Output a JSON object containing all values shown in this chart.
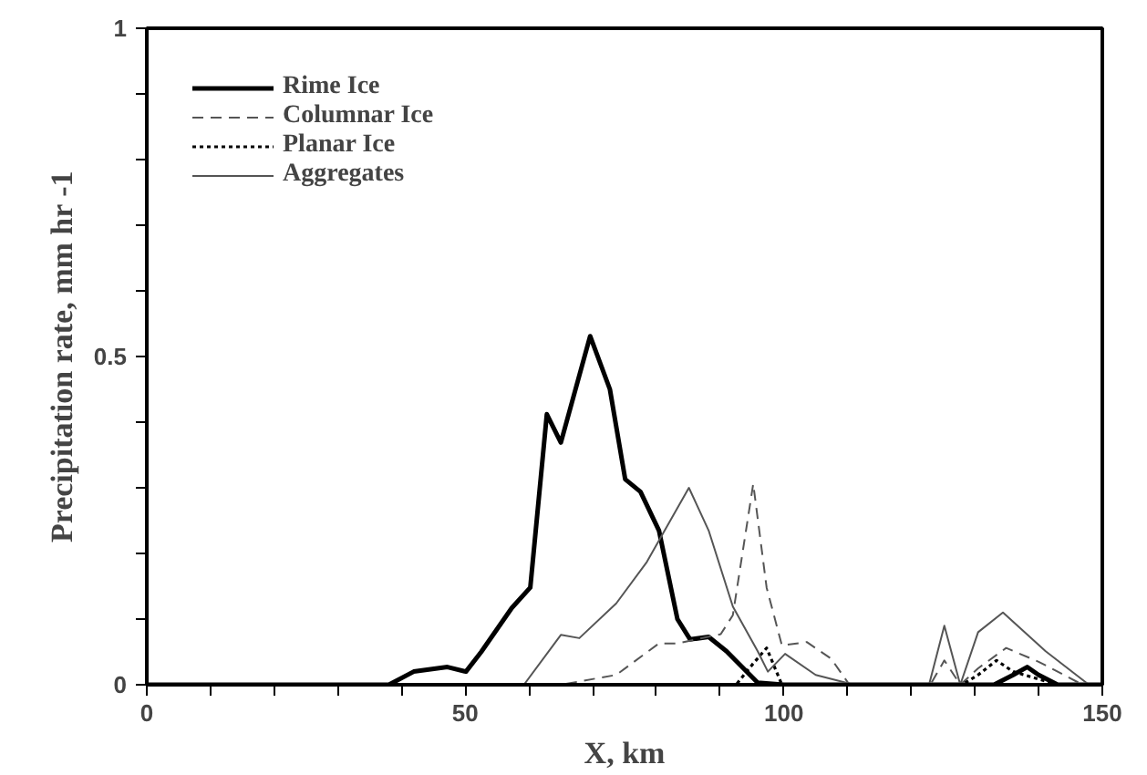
{
  "chart_data": {
    "type": "line",
    "xlabel": "X, km",
    "ylabel": "Precipitation rate, mm hr -1",
    "xlim": [
      0,
      150
    ],
    "ylim": [
      0,
      1
    ],
    "xticks": [
      0,
      {
        "value": 10,
        "label": null
      },
      {
        "value": 20,
        "label": null
      },
      {
        "value": 30,
        "label": null
      },
      {
        "value": 40,
        "label": null
      },
      50,
      {
        "value": 60,
        "label": null
      },
      {
        "value": 70,
        "label": null
      },
      {
        "value": 80,
        "label": null
      },
      {
        "value": 90,
        "label": null
      },
      100,
      {
        "value": 110,
        "label": null
      },
      {
        "value": 120,
        "label": null
      },
      {
        "value": 130,
        "label": null
      },
      {
        "value": 140,
        "label": null
      },
      150
    ],
    "yticks": [
      0,
      {
        "value": 0.1,
        "label": null
      },
      {
        "value": 0.2,
        "label": null
      },
      {
        "value": 0.3,
        "label": null
      },
      {
        "value": 0.4,
        "label": null
      },
      0.5,
      {
        "value": 0.6,
        "label": null
      },
      {
        "value": 0.7,
        "label": null
      },
      {
        "value": 0.8,
        "label": null
      },
      {
        "value": 0.9,
        "label": null
      },
      1
    ],
    "grid": false,
    "legend": "top left",
    "marker": "none",
    "series": [
      {
        "name": "Rime Ice",
        "color": "#000000",
        "line_style": "solid",
        "x": [
          0,
          38,
          41.9,
          47.2,
          50.1,
          52.5,
          57.3,
          60.2,
          62.8,
          65.0,
          69.6,
          72.7,
          75.1,
          77.5,
          80.4,
          83.3,
          85.3,
          88.2,
          91.0,
          95.9,
          100,
          133,
          136,
          138.2,
          140,
          143,
          150
        ],
        "values": [
          0,
          0,
          0.02,
          0.027,
          0.02,
          0.05,
          0.117,
          0.148,
          0.412,
          0.369,
          0.531,
          0.45,
          0.313,
          0.294,
          0.235,
          0.1,
          0.069,
          0.073,
          0.051,
          0.003,
          0,
          0,
          0.015,
          0.027,
          0.015,
          0,
          0
        ]
      },
      {
        "name": "Columnar Ice",
        "color": "#555555",
        "line_style": "dashed",
        "x": [
          0,
          65,
          73.7,
          80.4,
          83.3,
          90.1,
          92.0,
          95.2,
          97.3,
          99.7,
          103.6,
          107.4,
          110.3,
          123,
          125.2,
          127.7,
          130.5,
          134.9,
          140,
          146.9,
          150
        ],
        "values": [
          0,
          0,
          0.015,
          0.063,
          0.063,
          0.077,
          0.106,
          0.306,
          0.148,
          0.06,
          0.065,
          0.04,
          0,
          0,
          0.037,
          0,
          0.025,
          0.056,
          0.035,
          0,
          0
        ]
      },
      {
        "name": "Planar Ice",
        "color": "#000000",
        "line_style": "dotted",
        "x": [
          0,
          92.5,
          95,
          97.3,
          99.7,
          128,
          130.5,
          133.4,
          136,
          143,
          150
        ],
        "values": [
          0,
          0,
          0.03,
          0.056,
          0,
          0,
          0.015,
          0.037,
          0.02,
          0,
          0
        ]
      },
      {
        "name": "Aggregates",
        "color": "#555555",
        "line_style": "solid",
        "x": [
          0,
          59.2,
          65.0,
          67.9,
          73.7,
          78.5,
          85.1,
          88.2,
          92.0,
          95.9,
          97.5,
          100.2,
          105,
          111,
          122.8,
          125.2,
          127.7,
          130.5,
          134.4,
          141.1,
          147.9,
          150
        ],
        "values": [
          0,
          0,
          0.076,
          0.071,
          0.124,
          0.187,
          0.3,
          0.235,
          0.119,
          0.051,
          0.02,
          0.047,
          0.015,
          0,
          0,
          0.09,
          0,
          0.08,
          0.11,
          0.051,
          0,
          0
        ]
      }
    ]
  }
}
